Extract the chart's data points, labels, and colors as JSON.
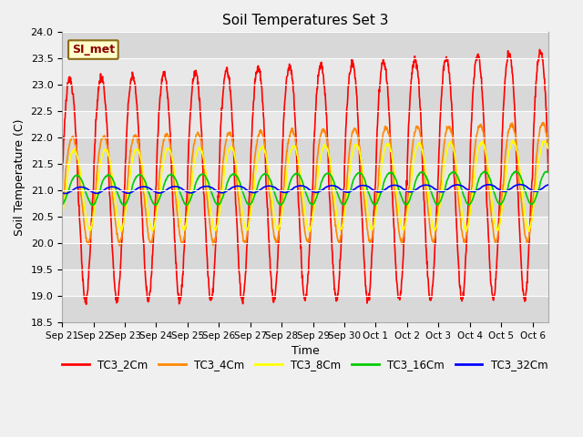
{
  "title": "Soil Temperatures Set 3",
  "xlabel": "Time",
  "ylabel": "Soil Temperature (C)",
  "ylim": [
    18.5,
    24.0
  ],
  "yticks": [
    18.5,
    19.0,
    19.5,
    20.0,
    20.5,
    21.0,
    21.5,
    22.0,
    22.5,
    23.0,
    23.5,
    24.0
  ],
  "fig_bg_color": "#f0f0f0",
  "plot_bg_color": "#e8e8e8",
  "annotation_text": "SI_met",
  "annotation_bg": "#ffffcc",
  "annotation_border": "#8b6914",
  "series": [
    {
      "label": "TC3_2Cm",
      "color": "#ff0000",
      "amp": 2.1,
      "phase": 0.0,
      "lag": 0.0,
      "trend": 0.018
    },
    {
      "label": "TC3_4Cm",
      "color": "#ff8800",
      "amp": 1.0,
      "phase": 0.0,
      "lag": 0.08,
      "trend": 0.01
    },
    {
      "label": "TC3_8Cm",
      "color": "#ffff00",
      "amp": 0.75,
      "phase": 0.0,
      "lag": 0.13,
      "trend": 0.006
    },
    {
      "label": "TC3_16Cm",
      "color": "#00cc00",
      "amp": 0.28,
      "phase": 0.0,
      "lag": 0.22,
      "trend": 0.003
    },
    {
      "label": "TC3_32Cm",
      "color": "#0000ff",
      "amp": 0.06,
      "phase": 0.0,
      "lag": 0.35,
      "trend": 0.003
    }
  ],
  "base_temp": 21.0,
  "num_days": 15.5,
  "points_per_day": 96,
  "xtick_labels": [
    "Sep 21",
    "Sep 22",
    "Sep 23",
    "Sep 24",
    "Sep 25",
    "Sep 26",
    "Sep 27",
    "Sep 28",
    "Sep 29",
    "Sep 30",
    "Oct 1",
    "Oct 2",
    "Oct 3",
    "Oct 4",
    "Oct 5",
    "Oct 6"
  ],
  "grid_colors": [
    "#d8d8d8",
    "#e8e8e8"
  ],
  "linewidth": 1.2
}
